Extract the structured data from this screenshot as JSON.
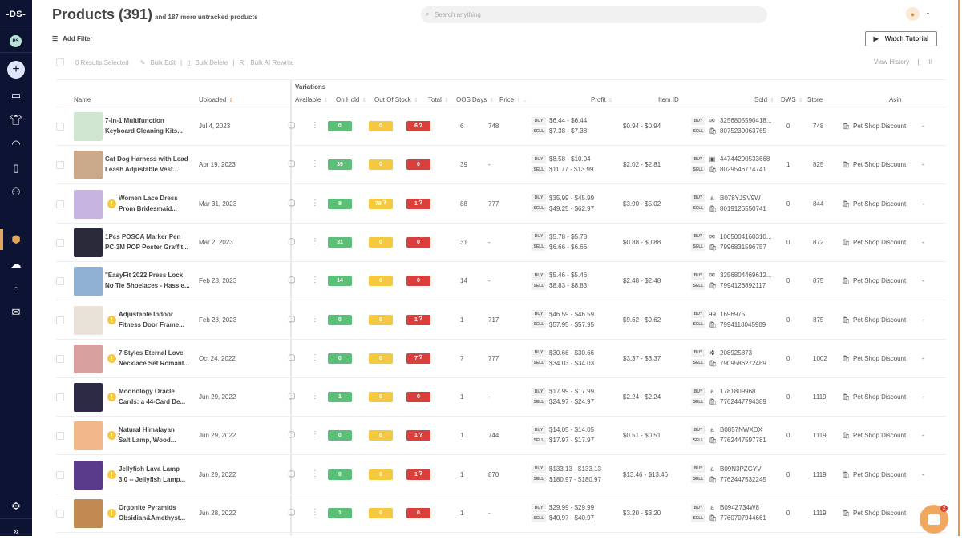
{
  "sidebar": {
    "logo": "-DS-",
    "avatar": "PS",
    "items": [
      "store-icon",
      "shirt-icon",
      "gauge-icon",
      "orders-icon",
      "users-icon",
      "products-icon",
      "upload-icon",
      "support-icon",
      "mail-icon"
    ],
    "settings": "settings-icon",
    "expand": "»"
  },
  "header": {
    "title": "Products (391)",
    "subtitle": "and 187 more untracked products",
    "search_placeholder": "Search anything"
  },
  "toolbar": {
    "add_filter": "Add Filter",
    "watch_tutorial": "Watch Tutorial",
    "selected": "0 Results Selected",
    "bulk_edit": "Bulk Edit",
    "bulk_delete": "Bulk Delete",
    "bulk_ai": "Bulk AI Rewrite",
    "view_history": "View History",
    "columns": "III"
  },
  "table": {
    "group": "Variations",
    "headers": {
      "name": "Name",
      "uploaded": "Uploaded",
      "available": "Available",
      "on_hold": "On Hold",
      "oos": "Out Of Stock",
      "total": "Total",
      "oos_days": "OOS Days",
      "price": "Price",
      "profit": "Profit",
      "item_id": "Item ID",
      "sold": "Sold",
      "dws": "DWS",
      "store": "Store",
      "asin": "Asin"
    },
    "buy_label": "BUY",
    "sell_label": "SELL",
    "rows": [
      {
        "n1": "7-In-1 Multifunction",
        "n2": "Keyboard Cleaning Kits...",
        "warn": false,
        "warn_count": "",
        "up": "Jul 4, 2023",
        "av": "0",
        "oh": "0",
        "oh_q": false,
        "os": "6",
        "os_q": true,
        "tot": "6",
        "days": "748",
        "buy": "$6.44 - $6.44",
        "sell": "$7.38 - $7.38",
        "profit": "$0.94 - $0.94",
        "bid": "3256805590418...",
        "bicon": "✉",
        "sid": "8075239063765",
        "sold": "0",
        "dws": "748",
        "store": "Pet Shop Discount",
        "asin": "-",
        "thumb": "#cfe5cf"
      },
      {
        "n1": "Cat Dog Harness with Lead",
        "n2": "Leash Adjustable Vest...",
        "warn": false,
        "warn_count": "",
        "up": "Apr 19, 2023",
        "av": "39",
        "oh": "0",
        "oh_q": false,
        "os": "0",
        "os_q": false,
        "tot": "39",
        "days": "-",
        "buy": "$8.58 - $10.04",
        "sell": "$11.77 - $13.99",
        "profit": "$2.02 - $2.81",
        "bid": "44744290533668",
        "bicon": "▣",
        "sid": "8029546774741",
        "sold": "1",
        "dws": "825",
        "store": "Pet Shop Discount",
        "asin": "-",
        "thumb": "#c9a98a"
      },
      {
        "n1": "Women Lace Dress",
        "n2": "Prom Bridesmaid...",
        "warn": true,
        "warn_count": "",
        "up": "Mar 31, 2023",
        "av": "9",
        "oh": "78",
        "oh_q": true,
        "os": "1",
        "os_q": true,
        "tot": "88",
        "days": "777",
        "buy": "$35.99 - $45.99",
        "sell": "$49.25 - $62.97",
        "profit": "$3.90 - $5.02",
        "bid": "B078YJSV9W",
        "bicon": "a",
        "sid": "8019126550741",
        "sold": "0",
        "dws": "844",
        "store": "Pet Shop Discount",
        "asin": "-",
        "thumb": "#c6b3e0"
      },
      {
        "n1": "1Pcs POSCA Marker Pen",
        "n2": "PC-3M POP Poster Graffit...",
        "warn": false,
        "warn_count": "",
        "up": "Mar 2, 2023",
        "av": "31",
        "oh": "0",
        "oh_q": false,
        "os": "0",
        "os_q": false,
        "tot": "31",
        "days": "-",
        "buy": "$5.78 - $5.78",
        "sell": "$6.66 - $6.66",
        "profit": "$0.88 - $0.88",
        "bid": "1005004160310...",
        "bicon": "✉",
        "sid": "7996831596757",
        "sold": "0",
        "dws": "872",
        "store": "Pet Shop Discount",
        "asin": "-",
        "thumb": "#2a2a3a"
      },
      {
        "n1": "\"EasyFit 2022 Press Lock",
        "n2": "No Tie Shoelaces - Hassle...",
        "warn": false,
        "warn_count": "",
        "up": "Feb 28, 2023",
        "av": "14",
        "oh": "0",
        "oh_q": false,
        "os": "0",
        "os_q": false,
        "tot": "14",
        "days": "-",
        "buy": "$5.46 - $5.46",
        "sell": "$8.83 - $8.83",
        "profit": "$2.48 - $2.48",
        "bid": "3256804469612...",
        "bicon": "✉",
        "sid": "7994126892117",
        "sold": "0",
        "dws": "875",
        "store": "Pet Shop Discount",
        "asin": "-",
        "thumb": "#8fb0d0"
      },
      {
        "n1": "Adjustable Indoor",
        "n2": "Fitness Door Frame...",
        "warn": true,
        "warn_count": "",
        "up": "Feb 28, 2023",
        "av": "0",
        "oh": "0",
        "oh_q": false,
        "os": "1",
        "os_q": true,
        "tot": "1",
        "days": "717",
        "buy": "$46.59 - $46.59",
        "sell": "$57.95 - $57.95",
        "profit": "$9.62 - $9.62",
        "bid": "1696975",
        "bicon": "99",
        "sid": "7994118045909",
        "sold": "0",
        "dws": "875",
        "store": "Pet Shop Discount",
        "asin": "-",
        "thumb": "#e8e2d8"
      },
      {
        "n1": "7 Styles Eternal Love",
        "n2": "Necklace Set Romant...",
        "warn": true,
        "warn_count": "",
        "up": "Oct 24, 2022",
        "av": "0",
        "oh": "0",
        "oh_q": false,
        "os": "7",
        "os_q": true,
        "tot": "7",
        "days": "777",
        "buy": "$30.66 - $30.66",
        "sell": "$34.03 - $34.03",
        "profit": "$3.37 - $3.37",
        "bid": "208925873",
        "bicon": "✲",
        "sid": "7909586272469",
        "sold": "0",
        "dws": "1002",
        "store": "Pet Shop Discount",
        "asin": "-",
        "thumb": "#d9a0a0"
      },
      {
        "n1": "Moonology Oracle",
        "n2": "Cards: a 44-Card De...",
        "warn": true,
        "warn_count": "",
        "up": "Jun 29, 2022",
        "av": "1",
        "oh": "0",
        "oh_q": false,
        "os": "0",
        "os_q": false,
        "tot": "1",
        "days": "-",
        "buy": "$17.99 - $17.99",
        "sell": "$24.97 - $24.97",
        "profit": "$2.24 - $2.24",
        "bid": "1781809968",
        "bicon": "a",
        "sid": "7762447794389",
        "sold": "0",
        "dws": "1119",
        "store": "Pet Shop Discount",
        "asin": "-",
        "thumb": "#2c2a45"
      },
      {
        "n1": "Natural Himalayan",
        "n2": "Salt Lamp, Wood...",
        "warn": true,
        "warn_count": "2",
        "up": "Jun 29, 2022",
        "av": "0",
        "oh": "0",
        "oh_q": false,
        "os": "1",
        "os_q": true,
        "tot": "1",
        "days": "744",
        "buy": "$14.05 - $14.05",
        "sell": "$17.97 - $17.97",
        "profit": "$0.51 - $0.51",
        "bid": "B0857NWXDX",
        "bicon": "a",
        "sid": "7762447597781",
        "sold": "0",
        "dws": "1119",
        "store": "Pet Shop Discount",
        "asin": "-",
        "thumb": "#f0b888"
      },
      {
        "n1": "Jellyfish Lava Lamp",
        "n2": "3.0 -- Jellyfish Lamp...",
        "warn": true,
        "warn_count": "",
        "up": "Jun 29, 2022",
        "av": "0",
        "oh": "0",
        "oh_q": false,
        "os": "1",
        "os_q": true,
        "tot": "1",
        "days": "870",
        "buy": "$133.13 - $133.13",
        "sell": "$180.97 - $180.97",
        "profit": "$13.46 - $13.46",
        "bid": "B09N3PZGYV",
        "bicon": "a",
        "sid": "7762447532245",
        "sold": "0",
        "dws": "1119",
        "store": "Pet Shop Discount",
        "asin": "-",
        "thumb": "#5a3a8a"
      },
      {
        "n1": "Orgonite Pyramids",
        "n2": "Obsidian&Amethyst...",
        "warn": true,
        "warn_count": "",
        "up": "Jun 28, 2022",
        "av": "1",
        "oh": "0",
        "oh_q": false,
        "os": "0",
        "os_q": false,
        "tot": "1",
        "days": "-",
        "buy": "$29.99 - $29.99",
        "sell": "$40.97 - $40.97",
        "profit": "$3.20 - $3.20",
        "bid": "B094Z734W8",
        "bicon": "a",
        "sid": "7760707944661",
        "sold": "0",
        "dws": "1119",
        "store": "Pet Shop Discount",
        "asin": "-",
        "thumb": "#c08a50"
      }
    ]
  },
  "chat": {
    "count": "2"
  },
  "colors": {
    "sidebar": "#0d1333",
    "accent": "#e0a55e",
    "available": "#5cbf77",
    "on_hold": "#f5c842",
    "out_of_stock": "#d9403b"
  }
}
